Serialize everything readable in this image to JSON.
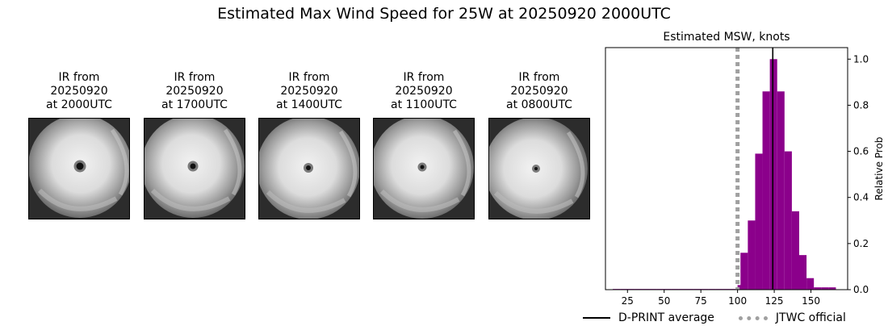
{
  "title": "Estimated Max Wind Speed for 25W at 20250920 2000UTC",
  "ir_panels": [
    {
      "line1": "IR from",
      "line2": "20250920",
      "line3": "at 2000UTC"
    },
    {
      "line1": "IR from",
      "line2": "20250920",
      "line3": "at 1700UTC"
    },
    {
      "line1": "IR from",
      "line2": "20250920",
      "line3": "at 1400UTC"
    },
    {
      "line1": "IR from",
      "line2": "20250920",
      "line3": "at 1100UTC"
    },
    {
      "line1": "IR from",
      "line2": "20250920",
      "line3": "at 0800UTC"
    }
  ],
  "legend": {
    "dprint": "D-PRINT average",
    "jtwc": "JTWC official"
  },
  "chart_data": {
    "type": "bar",
    "title": "Estimated MSW, knots",
    "xlabel": "",
    "ylabel": "Relative Prob",
    "xlim": [
      10,
      175
    ],
    "ylim": [
      0,
      1.05
    ],
    "xticks": [
      25,
      50,
      75,
      100,
      125,
      150
    ],
    "yticks": [
      0.0,
      0.2,
      0.4,
      0.6,
      0.8,
      1.0
    ],
    "ytick_labels": [
      "0.0",
      "0.2",
      "0.4",
      "0.6",
      "0.8",
      "1.0"
    ],
    "y_axis_side": "right",
    "bin_width": 5,
    "bins": [
      {
        "x0": 15,
        "value": 0.003
      },
      {
        "x0": 20,
        "value": 0.003
      },
      {
        "x0": 25,
        "value": 0.003
      },
      {
        "x0": 30,
        "value": 0.003
      },
      {
        "x0": 35,
        "value": 0.003
      },
      {
        "x0": 40,
        "value": 0.003
      },
      {
        "x0": 45,
        "value": 0.003
      },
      {
        "x0": 50,
        "value": 0.003
      },
      {
        "x0": 55,
        "value": 0.003
      },
      {
        "x0": 60,
        "value": 0.003
      },
      {
        "x0": 65,
        "value": 0.003
      },
      {
        "x0": 70,
        "value": 0.003
      },
      {
        "x0": 75,
        "value": 0.003
      },
      {
        "x0": 80,
        "value": 0.003
      },
      {
        "x0": 85,
        "value": 0.003
      },
      {
        "x0": 90,
        "value": 0.003
      },
      {
        "x0": 95,
        "value": 0.003
      },
      {
        "x0": 100,
        "value": 0.02
      },
      {
        "x0": 102,
        "value": 0.16
      },
      {
        "x0": 107,
        "value": 0.3
      },
      {
        "x0": 112,
        "value": 0.59
      },
      {
        "x0": 117,
        "value": 0.86
      },
      {
        "x0": 122,
        "value": 1.0
      },
      {
        "x0": 127,
        "value": 0.86
      },
      {
        "x0": 132,
        "value": 0.6
      },
      {
        "x0": 137,
        "value": 0.34
      },
      {
        "x0": 142,
        "value": 0.15
      },
      {
        "x0": 147,
        "value": 0.05
      },
      {
        "x0": 152,
        "value": 0.01
      },
      {
        "x0": 157,
        "value": 0.01
      },
      {
        "x0": 162,
        "value": 0.01
      }
    ],
    "bar_color": "#8b008b",
    "dprint_average": 124,
    "jtwc_official": 100,
    "dprint_color": "#000000",
    "jtwc_color": "#a0a0a0",
    "legend_position": "bottom"
  }
}
